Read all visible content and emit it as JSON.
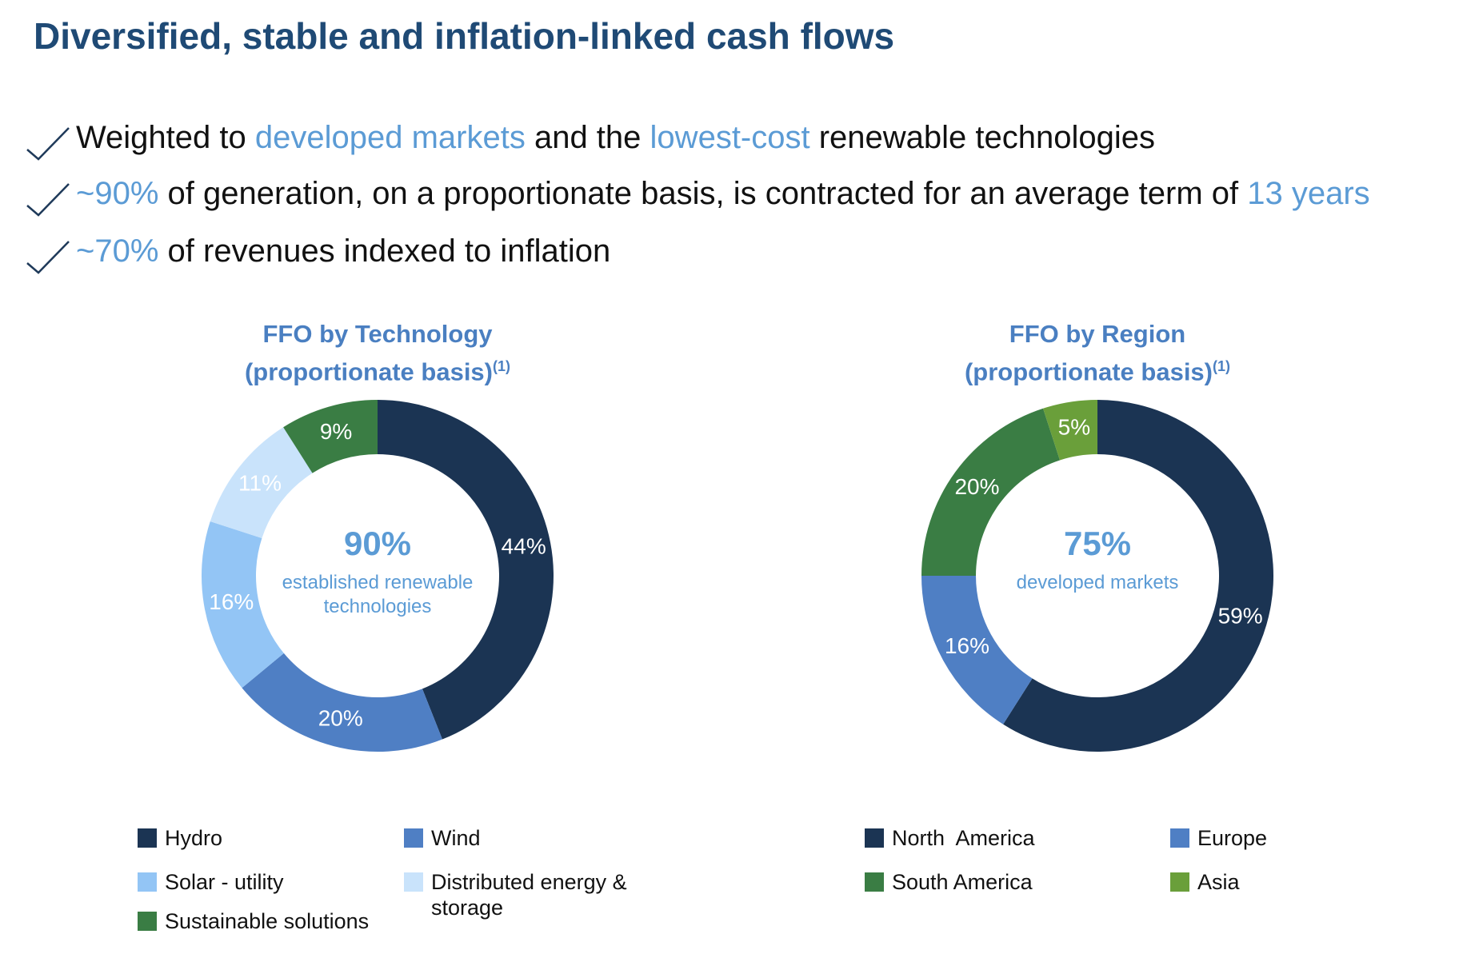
{
  "title": "Diversified, stable and inflation-linked cash flows",
  "highlight_color": "#5b9bd5",
  "bullets": [
    {
      "segments": [
        {
          "text": "Weighted to"
        },
        {
          "text": "developed markets",
          "highlight": true
        },
        {
          "text": "and the"
        },
        {
          "text": "lowest-cost",
          "highlight": true
        },
        {
          "text": "renewable technologies"
        }
      ]
    },
    {
      "segments": [
        {
          "text": "~90%",
          "highlight": true
        },
        {
          "text": "of generation, on a proportionate basis, is contracted for an average term of"
        },
        {
          "text": "13 years",
          "highlight": true
        }
      ]
    },
    {
      "segments": [
        {
          "text": "~70%",
          "highlight": true
        },
        {
          "text": "of revenues indexed to inflation"
        }
      ]
    }
  ],
  "chart_data": [
    {
      "type": "donut",
      "title": "FFO by Technology",
      "subtitle": "(proportionate basis)",
      "footnote": "(1)",
      "center_label": "90%",
      "center_text": "established renewable technologies",
      "categories": [
        "Hydro",
        "Wind",
        "Solar - utility",
        "Distributed energy & storage",
        "Sustainable solutions"
      ],
      "values": [
        44,
        20,
        16,
        11,
        9
      ],
      "value_labels": [
        "44%",
        "20%",
        "16%",
        "11%",
        "9%"
      ],
      "colors": [
        "#1b3453",
        "#4f7fc4",
        "#93c5f5",
        "#c9e3fb",
        "#3a7d44"
      ]
    },
    {
      "type": "donut",
      "title": "FFO by Region",
      "subtitle": "(proportionate basis)",
      "footnote": "(1)",
      "center_label": "75%",
      "center_text": "developed markets",
      "categories": [
        "North  America",
        "Europe",
        "South America",
        "Asia"
      ],
      "values": [
        59,
        16,
        20,
        5
      ],
      "value_labels": [
        "59%",
        "16%",
        "20%",
        "5%"
      ],
      "colors": [
        "#1b3453",
        "#4f7fc4",
        "#3a7d44",
        "#6a9f3a"
      ]
    }
  ]
}
